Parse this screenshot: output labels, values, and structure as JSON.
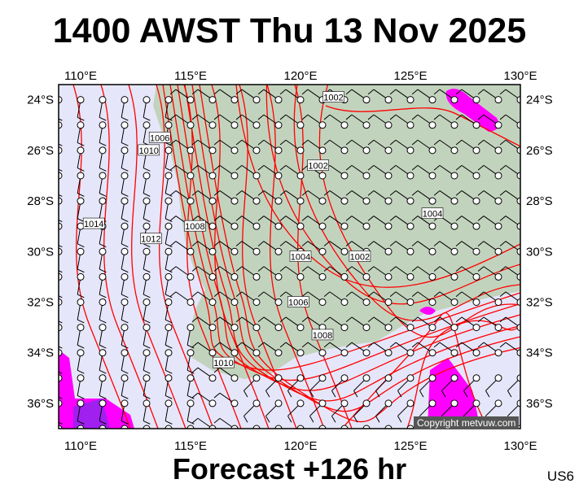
{
  "title": "1400 AWST Thu 13 Nov 2025",
  "footer": "Forecast +126 hr",
  "product_code": "US6",
  "copyright": "Copyright metvuw.com",
  "map": {
    "lon_range": [
      109,
      130
    ],
    "lat_range": [
      -37,
      -23.4
    ],
    "lon_ticks": [
      "110°E",
      "115°E",
      "120°E",
      "125°E",
      "130°E"
    ],
    "lon_tick_values": [
      110,
      115,
      120,
      125,
      130
    ],
    "lat_ticks": [
      "24°S",
      "26°S",
      "28°S",
      "30°S",
      "32°S",
      "34°S",
      "36°S"
    ],
    "lat_tick_values": [
      -24,
      -26,
      -28,
      -30,
      -32,
      -34,
      -36
    ],
    "isobar_labels": [
      {
        "text": "1002",
        "lon": 121.5,
        "lat": -23.9
      },
      {
        "text": "1006",
        "lon": 113.6,
        "lat": -25.5
      },
      {
        "text": "1010",
        "lon": 113.1,
        "lat": -26.0
      },
      {
        "text": "1002",
        "lon": 120.8,
        "lat": -26.6
      },
      {
        "text": "1004",
        "lon": 126.0,
        "lat": -28.5
      },
      {
        "text": "1008",
        "lon": 115.2,
        "lat": -29.0
      },
      {
        "text": "1012",
        "lon": 113.2,
        "lat": -29.5
      },
      {
        "text": "1014",
        "lon": 110.6,
        "lat": -28.9
      },
      {
        "text": "1004",
        "lon": 120.0,
        "lat": -30.2
      },
      {
        "text": "1002",
        "lon": 122.7,
        "lat": -30.2
      },
      {
        "text": "1006",
        "lon": 119.9,
        "lat": -32.0
      },
      {
        "text": "1008",
        "lon": 121.0,
        "lat": -33.3
      },
      {
        "text": "1010",
        "lon": 116.5,
        "lat": -34.4
      }
    ],
    "colors": {
      "ocean": "#e6e6fa",
      "land": "#c2d3bd",
      "isobar": "#ff0000",
      "rain": "#ff00ff",
      "heavy_rain": "#a020f0",
      "barb": "#000000"
    }
  }
}
